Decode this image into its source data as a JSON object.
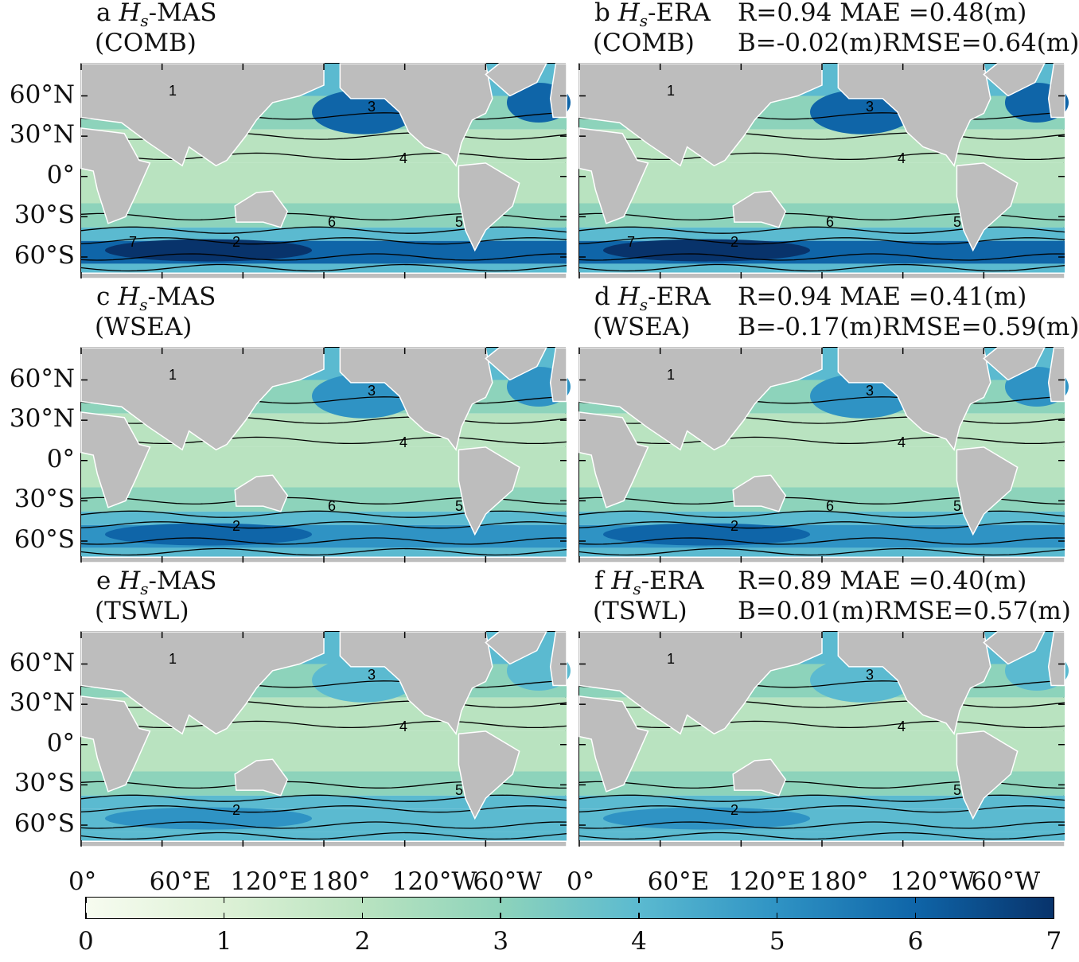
{
  "chart_data": [
    {
      "panel": "a",
      "title_line1": "a",
      "title_var": "H",
      "title_sub": "s",
      "title_rest": "-MAS",
      "title_line2": "(COMB)",
      "type": "heatmap",
      "stats_line1": "",
      "stats_line2": "",
      "contour_levels": [
        1,
        2,
        3,
        4,
        5,
        6,
        7
      ]
    },
    {
      "panel": "b",
      "title_line1": "b",
      "title_var": "H",
      "title_sub": "s",
      "title_rest": "-ERA",
      "title_line2": "(COMB)",
      "type": "heatmap",
      "stats_line1": "R=0.94 MAE =0.48(m)",
      "stats_line2": "B=-0.02(m)RMSE=0.64(m)",
      "R": 0.94,
      "MAE_m": 0.48,
      "B_m": -0.02,
      "RMSE_m": 0.64,
      "contour_levels": [
        1,
        2,
        3,
        4,
        5,
        6,
        7
      ]
    },
    {
      "panel": "c",
      "title_line1": "c",
      "title_var": "H",
      "title_sub": "s",
      "title_rest": "-MAS",
      "title_line2": "(WSEA)",
      "type": "heatmap",
      "stats_line1": "",
      "stats_line2": "",
      "contour_levels": [
        1,
        2,
        3,
        4,
        5,
        6
      ]
    },
    {
      "panel": "d",
      "title_line1": "d",
      "title_var": "H",
      "title_sub": "s",
      "title_rest": "-ERA",
      "title_line2": "(WSEA)",
      "type": "heatmap",
      "stats_line1": "R=0.94 MAE =0.41(m)",
      "stats_line2": "B=-0.17(m)RMSE=0.59(m)",
      "R": 0.94,
      "MAE_m": 0.41,
      "B_m": -0.17,
      "RMSE_m": 0.59,
      "contour_levels": [
        1,
        2,
        3,
        4,
        5,
        6
      ]
    },
    {
      "panel": "e",
      "title_line1": "e",
      "title_var": "H",
      "title_sub": "s",
      "title_rest": "-MAS",
      "title_line2": "(TSWL)",
      "type": "heatmap",
      "stats_line1": "",
      "stats_line2": "",
      "contour_levels": [
        1,
        2,
        3,
        4,
        5
      ]
    },
    {
      "panel": "f",
      "title_line1": "f",
      "title_var": "H",
      "title_sub": "s",
      "title_rest": "-ERA",
      "title_line2": "(TSWL)",
      "type": "heatmap",
      "stats_line1": "R=0.89 MAE =0.40(m)",
      "stats_line2": "B=0.01(m)RMSE=0.57(m)",
      "R": 0.89,
      "MAE_m": 0.4,
      "B_m": 0.01,
      "RMSE_m": 0.57,
      "contour_levels": [
        1,
        2,
        3,
        4,
        5
      ]
    }
  ],
  "lat_ticks": [
    "60°N",
    "30°N",
    "0°",
    "30°S",
    "60°S"
  ],
  "lon_ticks": [
    "0°",
    "60°E",
    "120°E",
    "180°",
    "120°W",
    "60°W"
  ],
  "colorbar": {
    "ticks": [
      "0",
      "1",
      "2",
      "3",
      "4",
      "5",
      "6",
      "7"
    ],
    "range": [
      0,
      7
    ],
    "colors": [
      "#f7fcf0",
      "#ddf1d6",
      "#b9e3c0",
      "#8dd3bb",
      "#5bbad0",
      "#2f93c4",
      "#0f65a8",
      "#08336b"
    ]
  },
  "land_color": "#bdbdbd"
}
